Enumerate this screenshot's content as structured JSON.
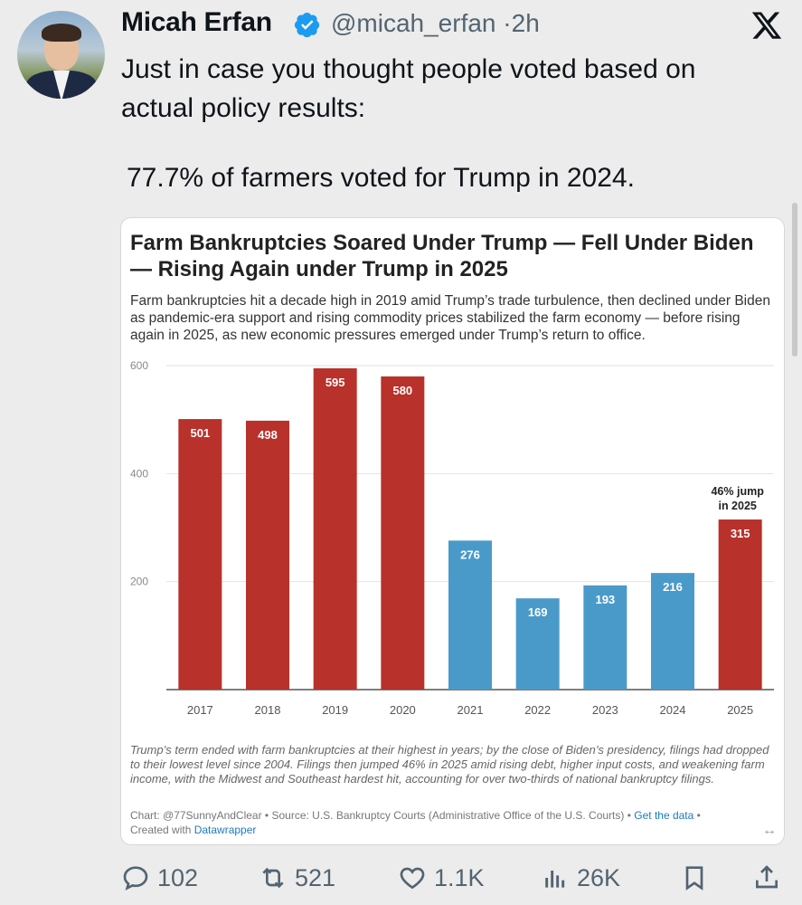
{
  "tweet": {
    "author_name": "Micah Erfan",
    "handle": "@micah_erfan",
    "separator": "·",
    "time": "2h",
    "text_line1": "Just in case you thought people voted based on actual policy results:",
    "text_line2": "77.7% of farmers voted for Trump in 2024."
  },
  "chart_card": {
    "title": "Farm Bankruptcies Soared Under Trump — Fell Under Biden — Rising Again under Trump in 2025",
    "subtitle": "Farm bankruptcies hit a decade high in 2019 amid Trump’s trade turbulence, then declined under Biden as pandemic-era support and rising commodity prices stabilized the farm economy — before rising again in 2025, as new economic pressures emerged under Trump’s return to office.",
    "note": "Trump’s term ended with farm bankruptcies at their highest in years; by the close of Biden’s presidency, filings had dropped to their lowest level since 2004. Filings then jumped 46% in 2025 amid rising debt, higher input costs, and weakening farm income, with the Midwest and Southeast hardest hit, accounting for over two-thirds of national bankruptcy filings.",
    "source_chart": "Chart: @77SunnyAndClear",
    "source_sep": " • ",
    "source_text": "Source: U.S. Bankruptcy Courts (Administrative Office of the U.S. Courts)",
    "get_data": "Get the data",
    "created_with": "Created with ",
    "datawrapper": "Datawrapper",
    "expand_icon": "↔"
  },
  "chart_data": {
    "type": "bar",
    "categories": [
      "2017",
      "2018",
      "2019",
      "2020",
      "2021",
      "2022",
      "2023",
      "2024",
      "2025"
    ],
    "values": [
      501,
      498,
      595,
      580,
      276,
      169,
      193,
      216,
      315
    ],
    "bar_colors": [
      "#b8312b",
      "#b8312b",
      "#b8312b",
      "#b8312b",
      "#4a9ac9",
      "#4a9ac9",
      "#4a9ac9",
      "#4a9ac9",
      "#b8312b"
    ],
    "ylim": [
      0,
      600
    ],
    "yticks": [
      200,
      400,
      600
    ],
    "annotation": {
      "category": "2025",
      "line1": "46% jump",
      "line2": "in 2025"
    },
    "grid": true
  },
  "actions": {
    "replies": "102",
    "reposts": "521",
    "likes": "1.1K",
    "views": "26K"
  },
  "colors": {
    "verified": "#1d9bf0",
    "trump_red": "#b8312b",
    "biden_blue": "#4a9ac9"
  }
}
